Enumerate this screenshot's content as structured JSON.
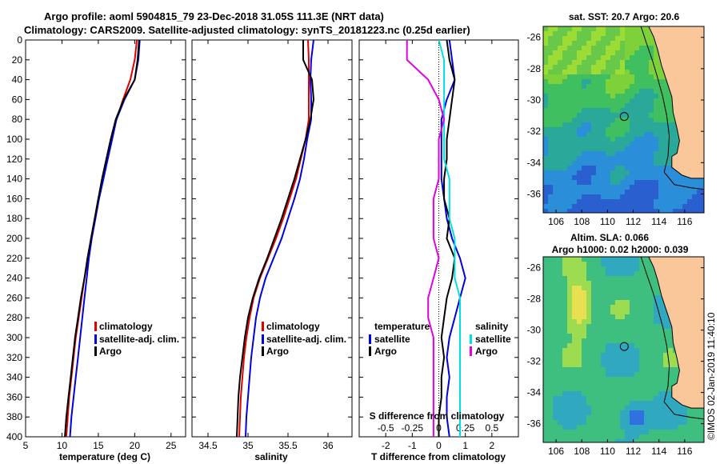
{
  "header": {
    "title_line1": "Argo profile: aoml 5904815_79 23-Dec-2018 31.05S 111.3E (NRT data)",
    "title_line2": "Climatology: CARS2009. Satellite-adjusted climatology: synTS_20181223.nc (0.25d earlier)"
  },
  "side_stamp": "©IMOS 02-Jan-2019 11:40:10",
  "colors": {
    "climatology": "#e00000",
    "satellite": "#0000e0",
    "argo": "#000000",
    "s_sat": "#00e0e0",
    "s_argo": "#e000e0",
    "land": "#f9c79a"
  },
  "chart_data": [
    {
      "type": "line",
      "name": "temperature",
      "xlabel": "temperature (deg C)",
      "ylabel": "",
      "xlim": [
        5,
        27
      ],
      "ylim": [
        400,
        0
      ],
      "xticks": [
        "5",
        "10",
        "15",
        "20",
        "25"
      ],
      "yticks": [
        "0",
        "20",
        "40",
        "60",
        "80",
        "100",
        "120",
        "140",
        "160",
        "180",
        "200",
        "220",
        "240",
        "260",
        "280",
        "300",
        "320",
        "340",
        "360",
        "380",
        "400"
      ],
      "legend": [
        "climatology",
        "satellite-adj. clim.",
        "Argo"
      ],
      "depth": [
        0,
        20,
        40,
        60,
        80,
        100,
        120,
        140,
        160,
        180,
        200,
        220,
        240,
        260,
        280,
        300,
        320,
        340,
        360,
        380,
        400
      ],
      "series": [
        {
          "name": "climatology",
          "values": [
            20.3,
            20.0,
            19.4,
            18.4,
            17.5,
            16.8,
            16.2,
            15.6,
            15.0,
            14.5,
            14.0,
            13.6,
            13.1,
            12.7,
            12.3,
            11.9,
            11.6,
            11.3,
            11.0,
            10.8,
            10.6
          ]
        },
        {
          "name": "satellite-adj. clim.",
          "values": [
            20.7,
            20.5,
            20.0,
            18.6,
            17.5,
            16.9,
            16.3,
            15.7,
            15.1,
            14.6,
            14.1,
            13.7,
            13.4,
            13.1,
            12.8,
            12.5,
            12.2,
            11.9,
            11.6,
            11.3,
            11.1
          ]
        },
        {
          "name": "Argo",
          "values": [
            20.6,
            20.4,
            20.0,
            18.5,
            17.4,
            16.7,
            16.1,
            15.5,
            15.0,
            14.5,
            14.0,
            13.5,
            13.1,
            12.6,
            12.2,
            11.8,
            11.5,
            11.2,
            10.9,
            10.6,
            10.4
          ]
        }
      ]
    },
    {
      "type": "line",
      "name": "salinity",
      "xlabel": "salinity",
      "xlim": [
        34.3,
        36.3
      ],
      "ylim": [
        400,
        0
      ],
      "xticks": [
        "34.5",
        "35",
        "35.5",
        "36"
      ],
      "legend": [
        "climatology",
        "satellite-adj. clim.",
        "Argo"
      ],
      "depth": [
        0,
        20,
        40,
        60,
        80,
        100,
        120,
        140,
        160,
        180,
        200,
        220,
        240,
        260,
        280,
        300,
        320,
        340,
        360,
        380,
        400
      ],
      "series": [
        {
          "name": "climatology",
          "values": [
            35.75,
            35.76,
            35.76,
            35.76,
            35.76,
            35.72,
            35.66,
            35.6,
            35.52,
            35.44,
            35.35,
            35.25,
            35.15,
            35.07,
            35.02,
            34.98,
            34.95,
            34.93,
            34.91,
            34.9,
            34.89
          ]
        },
        {
          "name": "satellite-adj. clim.",
          "values": [
            35.82,
            35.79,
            35.78,
            35.79,
            35.79,
            35.74,
            35.7,
            35.65,
            35.58,
            35.5,
            35.42,
            35.32,
            35.22,
            35.15,
            35.1,
            35.07,
            35.04,
            35.02,
            35.0,
            34.98,
            34.97
          ]
        },
        {
          "name": "Argo",
          "values": [
            35.69,
            35.69,
            35.8,
            35.82,
            35.78,
            35.72,
            35.65,
            35.58,
            35.5,
            35.42,
            35.33,
            35.24,
            35.14,
            35.06,
            35.0,
            34.96,
            34.93,
            34.9,
            34.88,
            34.87,
            34.86
          ]
        }
      ]
    },
    {
      "type": "line",
      "name": "difference",
      "xlabel": "T difference from climatology",
      "xlabel_top": "S difference from climatology",
      "xlim": [
        -3,
        3
      ],
      "ylim": [
        400,
        0
      ],
      "xticks": [
        "-2",
        "-1",
        "0",
        "1",
        "2"
      ],
      "xticks_s": [
        "-0.5",
        "-0.25",
        "0",
        "0.25",
        "0.5"
      ],
      "legend_t_title": "temperature",
      "legend_s_title": "salinity",
      "legend_t": [
        "satellite",
        "Argo"
      ],
      "legend_s": [
        "satellite",
        "Argo"
      ],
      "depth": [
        0,
        20,
        40,
        60,
        80,
        100,
        120,
        140,
        160,
        180,
        200,
        220,
        240,
        260,
        280,
        300,
        320,
        340,
        360,
        380,
        400
      ],
      "series": [
        {
          "name": "T satellite",
          "values": [
            0.4,
            0.5,
            0.6,
            0.3,
            0.1,
            0.1,
            0.1,
            0.1,
            0.2,
            0.3,
            0.5,
            0.8,
            1.0,
            0.8,
            0.6,
            0.4,
            0.3,
            0.4,
            0.3,
            0.3,
            0.4
          ]
        },
        {
          "name": "T Argo",
          "values": [
            0.3,
            0.4,
            0.6,
            0.5,
            0.4,
            0.3,
            0.3,
            0.2,
            0.2,
            0.4,
            0.3,
            0.6,
            0.5,
            0.3,
            0.2,
            0.1,
            0.2,
            0.1,
            0.1,
            0.0,
            0.0
          ]
        },
        {
          "name": "S satellite",
          "values": [
            0.0,
            0.05,
            0.05,
            0.05,
            0.05,
            0.05,
            0.05,
            0.1,
            0.1,
            0.1,
            0.15,
            0.15,
            0.15,
            0.2,
            0.2,
            0.2,
            0.2,
            0.2,
            0.2,
            0.2,
            0.2
          ]
        },
        {
          "name": "S Argo",
          "values": [
            -0.3,
            -0.3,
            -0.1,
            0.0,
            0.05,
            0.0,
            0.0,
            0.0,
            -0.05,
            -0.05,
            -0.05,
            0.0,
            -0.05,
            -0.1,
            -0.1,
            -0.05,
            -0.05,
            -0.05,
            -0.05,
            -0.05,
            -0.05
          ]
        }
      ]
    },
    {
      "type": "heatmap",
      "name": "sst-map",
      "title": "sat. SST: 20.7 Argo: 20.6",
      "xticks": [
        "106",
        "108",
        "110",
        "112",
        "114",
        "116"
      ],
      "yticks": [
        "-26",
        "-28",
        "-30",
        "-32",
        "-34",
        "-36"
      ],
      "xlim": [
        105,
        117.5
      ],
      "ylim": [
        -37.2,
        -25.3
      ],
      "argo_position": {
        "lon": 111.3,
        "lat": -31.05
      }
    },
    {
      "type": "heatmap",
      "name": "sla-map",
      "title": "Altim. SLA: 0.066",
      "subtitle": "Argo h1000: 0.02 h2000: 0.039",
      "xticks": [
        "106",
        "108",
        "110",
        "112",
        "114",
        "116"
      ],
      "yticks": [
        "-26",
        "-28",
        "-30",
        "-32",
        "-34",
        "-36"
      ],
      "xlim": [
        105,
        117.5
      ],
      "ylim": [
        -37.2,
        -25.3
      ],
      "argo_position": {
        "lon": 111.3,
        "lat": -31.05
      }
    }
  ]
}
